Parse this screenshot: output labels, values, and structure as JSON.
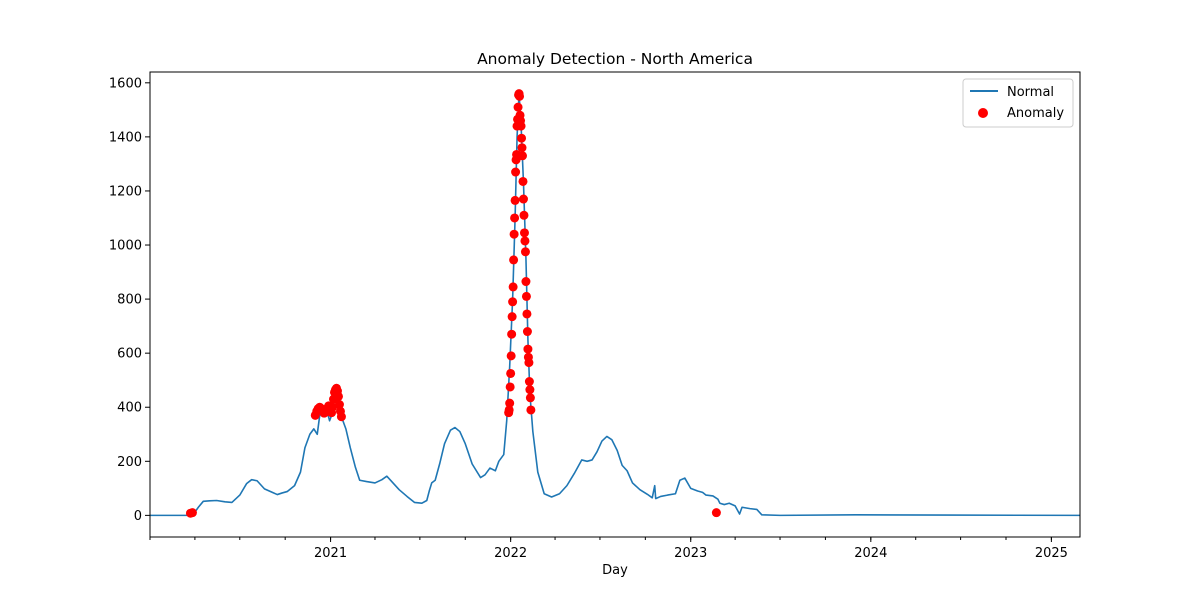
{
  "chart_data": {
    "type": "line",
    "title": "Anomaly Detection - North America",
    "xlabel": "Day",
    "ylabel": "",
    "x_axis_type": "date",
    "xlim": [
      "2020-01-01",
      "2025-02-28"
    ],
    "ylim": [
      -80,
      1640
    ],
    "x_ticks": [
      "2021-01-01",
      "2022-01-01",
      "2023-01-01",
      "2024-01-01",
      "2025-01-01"
    ],
    "x_tick_labels": [
      "2021",
      "2022",
      "2023",
      "2024",
      "2025"
    ],
    "y_ticks": [
      0,
      200,
      400,
      600,
      800,
      1000,
      1200,
      1400,
      1600
    ],
    "y_tick_labels": [
      "0",
      "200",
      "400",
      "600",
      "800",
      "1000",
      "1200",
      "1400",
      "1600"
    ],
    "grid": false,
    "legend_position": "top-right",
    "legend": [
      "Normal",
      "Anomaly"
    ],
    "colors": {
      "normal": "#1f77b4",
      "anomaly": "#ff0000"
    },
    "series": [
      {
        "name": "Normal",
        "kind": "line",
        "points": [
          [
            "2020-01-01",
            0
          ],
          [
            "2020-03-20",
            0
          ],
          [
            "2020-03-24",
            8
          ],
          [
            "2020-04-01",
            12
          ],
          [
            "2020-04-08",
            30
          ],
          [
            "2020-04-18",
            52
          ],
          [
            "2020-05-01",
            54
          ],
          [
            "2020-05-15",
            55
          ],
          [
            "2020-06-01",
            50
          ],
          [
            "2020-06-15",
            48
          ],
          [
            "2020-07-01",
            75
          ],
          [
            "2020-07-15",
            118
          ],
          [
            "2020-07-25",
            132
          ],
          [
            "2020-08-05",
            128
          ],
          [
            "2020-08-20",
            98
          ],
          [
            "2020-09-05",
            85
          ],
          [
            "2020-09-15",
            77
          ],
          [
            "2020-09-25",
            83
          ],
          [
            "2020-10-05",
            88
          ],
          [
            "2020-10-20",
            110
          ],
          [
            "2020-11-01",
            160
          ],
          [
            "2020-11-10",
            250
          ],
          [
            "2020-11-20",
            300
          ],
          [
            "2020-11-28",
            320
          ],
          [
            "2020-12-05",
            300
          ],
          [
            "2020-12-10",
            370
          ],
          [
            "2020-12-15",
            380
          ],
          [
            "2020-12-20",
            400
          ],
          [
            "2020-12-25",
            385
          ],
          [
            "2020-12-30",
            350
          ],
          [
            "2021-01-05",
            380
          ],
          [
            "2021-01-10",
            450
          ],
          [
            "2021-01-14",
            470
          ],
          [
            "2021-01-18",
            440
          ],
          [
            "2021-01-24",
            360
          ],
          [
            "2021-02-01",
            320
          ],
          [
            "2021-02-10",
            250
          ],
          [
            "2021-02-20",
            180
          ],
          [
            "2021-03-01",
            130
          ],
          [
            "2021-03-15",
            125
          ],
          [
            "2021-04-01",
            120
          ],
          [
            "2021-04-15",
            132
          ],
          [
            "2021-04-25",
            145
          ],
          [
            "2021-05-05",
            125
          ],
          [
            "2021-05-20",
            95
          ],
          [
            "2021-06-05",
            70
          ],
          [
            "2021-06-20",
            48
          ],
          [
            "2021-07-05",
            45
          ],
          [
            "2021-07-15",
            55
          ],
          [
            "2021-07-20",
            90
          ],
          [
            "2021-07-25",
            120
          ],
          [
            "2021-08-01",
            130
          ],
          [
            "2021-08-10",
            190
          ],
          [
            "2021-08-20",
            265
          ],
          [
            "2021-09-01",
            315
          ],
          [
            "2021-09-10",
            325
          ],
          [
            "2021-09-20",
            310
          ],
          [
            "2021-10-01",
            265
          ],
          [
            "2021-10-15",
            190
          ],
          [
            "2021-11-01",
            140
          ],
          [
            "2021-11-10",
            150
          ],
          [
            "2021-11-20",
            175
          ],
          [
            "2021-12-01",
            165
          ],
          [
            "2021-12-08",
            200
          ],
          [
            "2021-12-18",
            225
          ],
          [
            "2021-12-24",
            350
          ],
          [
            "2021-12-30",
            550
          ],
          [
            "2022-01-05",
            800
          ],
          [
            "2022-01-10",
            1100
          ],
          [
            "2022-01-14",
            1400
          ],
          [
            "2022-01-18",
            1560
          ],
          [
            "2022-01-22",
            1450
          ],
          [
            "2022-01-27",
            1230
          ],
          [
            "2022-02-01",
            950
          ],
          [
            "2022-02-05",
            650
          ],
          [
            "2022-02-09",
            450
          ],
          [
            "2022-02-15",
            310
          ],
          [
            "2022-02-25",
            160
          ],
          [
            "2022-03-10",
            80
          ],
          [
            "2022-03-25",
            68
          ],
          [
            "2022-04-10",
            80
          ],
          [
            "2022-04-25",
            110
          ],
          [
            "2022-05-10",
            155
          ],
          [
            "2022-05-25",
            205
          ],
          [
            "2022-06-05",
            200
          ],
          [
            "2022-06-15",
            205
          ],
          [
            "2022-06-25",
            235
          ],
          [
            "2022-07-05",
            275
          ],
          [
            "2022-07-15",
            292
          ],
          [
            "2022-07-25",
            280
          ],
          [
            "2022-08-05",
            240
          ],
          [
            "2022-08-15",
            185
          ],
          [
            "2022-08-25",
            165
          ],
          [
            "2022-09-05",
            120
          ],
          [
            "2022-09-20",
            95
          ],
          [
            "2022-10-05",
            78
          ],
          [
            "2022-10-15",
            65
          ],
          [
            "2022-10-20",
            110
          ],
          [
            "2022-10-22",
            62
          ],
          [
            "2022-11-01",
            70
          ],
          [
            "2022-11-15",
            75
          ],
          [
            "2022-12-01",
            80
          ],
          [
            "2022-12-10",
            130
          ],
          [
            "2022-12-20",
            138
          ],
          [
            "2023-01-01",
            100
          ],
          [
            "2023-01-15",
            90
          ],
          [
            "2023-01-25",
            85
          ],
          [
            "2023-02-01",
            75
          ],
          [
            "2023-02-15",
            72
          ],
          [
            "2023-02-25",
            60
          ],
          [
            "2023-03-01",
            45
          ],
          [
            "2023-03-10",
            40
          ],
          [
            "2023-03-20",
            45
          ],
          [
            "2023-04-01",
            35
          ],
          [
            "2023-04-10",
            5
          ],
          [
            "2023-04-15",
            30
          ],
          [
            "2023-05-01",
            25
          ],
          [
            "2023-05-15",
            22
          ],
          [
            "2023-05-25",
            2
          ],
          [
            "2023-07-01",
            0
          ],
          [
            "2023-12-01",
            2
          ],
          [
            "2024-06-01",
            1
          ],
          [
            "2025-02-28",
            0
          ]
        ]
      },
      {
        "name": "Anomaly",
        "kind": "scatter",
        "points": [
          [
            "2020-03-23",
            8
          ],
          [
            "2020-03-27",
            10
          ],
          [
            "2020-12-01",
            370
          ],
          [
            "2020-12-04",
            385
          ],
          [
            "2020-12-07",
            395
          ],
          [
            "2020-12-10",
            400
          ],
          [
            "2020-12-13",
            395
          ],
          [
            "2020-12-16",
            388
          ],
          [
            "2020-12-19",
            378
          ],
          [
            "2020-12-22",
            382
          ],
          [
            "2020-12-25",
            395
          ],
          [
            "2020-12-28",
            405
          ],
          [
            "2020-12-31",
            398
          ],
          [
            "2021-01-03",
            380
          ],
          [
            "2021-01-05",
            400
          ],
          [
            "2021-01-07",
            430
          ],
          [
            "2021-01-09",
            455
          ],
          [
            "2021-01-11",
            465
          ],
          [
            "2021-01-13",
            470
          ],
          [
            "2021-01-15",
            460
          ],
          [
            "2021-01-17",
            440
          ],
          [
            "2021-01-19",
            410
          ],
          [
            "2021-01-21",
            385
          ],
          [
            "2021-01-23",
            365
          ],
          [
            "2021-12-28",
            380
          ],
          [
            "2021-12-29",
            390
          ],
          [
            "2021-12-30",
            415
          ],
          [
            "2021-12-31",
            475
          ],
          [
            "2022-01-01",
            525
          ],
          [
            "2022-01-02",
            590
          ],
          [
            "2022-01-03",
            670
          ],
          [
            "2022-01-04",
            735
          ],
          [
            "2022-01-05",
            790
          ],
          [
            "2022-01-06",
            845
          ],
          [
            "2022-01-07",
            945
          ],
          [
            "2022-01-08",
            1040
          ],
          [
            "2022-01-09",
            1100
          ],
          [
            "2022-01-10",
            1165
          ],
          [
            "2022-01-11",
            1270
          ],
          [
            "2022-01-12",
            1315
          ],
          [
            "2022-01-13",
            1335
          ],
          [
            "2022-01-14",
            1440
          ],
          [
            "2022-01-15",
            1465
          ],
          [
            "2022-01-16",
            1510
          ],
          [
            "2022-01-17",
            1555
          ],
          [
            "2022-01-18",
            1560
          ],
          [
            "2022-01-19",
            1550
          ],
          [
            "2022-01-20",
            1480
          ],
          [
            "2022-01-21",
            1460
          ],
          [
            "2022-01-22",
            1440
          ],
          [
            "2022-01-23",
            1395
          ],
          [
            "2022-01-24",
            1360
          ],
          [
            "2022-01-25",
            1330
          ],
          [
            "2022-01-26",
            1235
          ],
          [
            "2022-01-27",
            1170
          ],
          [
            "2022-01-28",
            1110
          ],
          [
            "2022-01-29",
            1045
          ],
          [
            "2022-01-30",
            1015
          ],
          [
            "2022-01-31",
            975
          ],
          [
            "2022-02-01",
            865
          ],
          [
            "2022-02-02",
            810
          ],
          [
            "2022-02-03",
            745
          ],
          [
            "2022-02-04",
            680
          ],
          [
            "2022-02-05",
            615
          ],
          [
            "2022-02-06",
            585
          ],
          [
            "2022-02-07",
            565
          ],
          [
            "2022-02-08",
            495
          ],
          [
            "2022-02-09",
            465
          ],
          [
            "2022-02-10",
            435
          ],
          [
            "2022-02-11",
            390
          ],
          [
            "2023-02-22",
            10
          ]
        ]
      }
    ]
  }
}
